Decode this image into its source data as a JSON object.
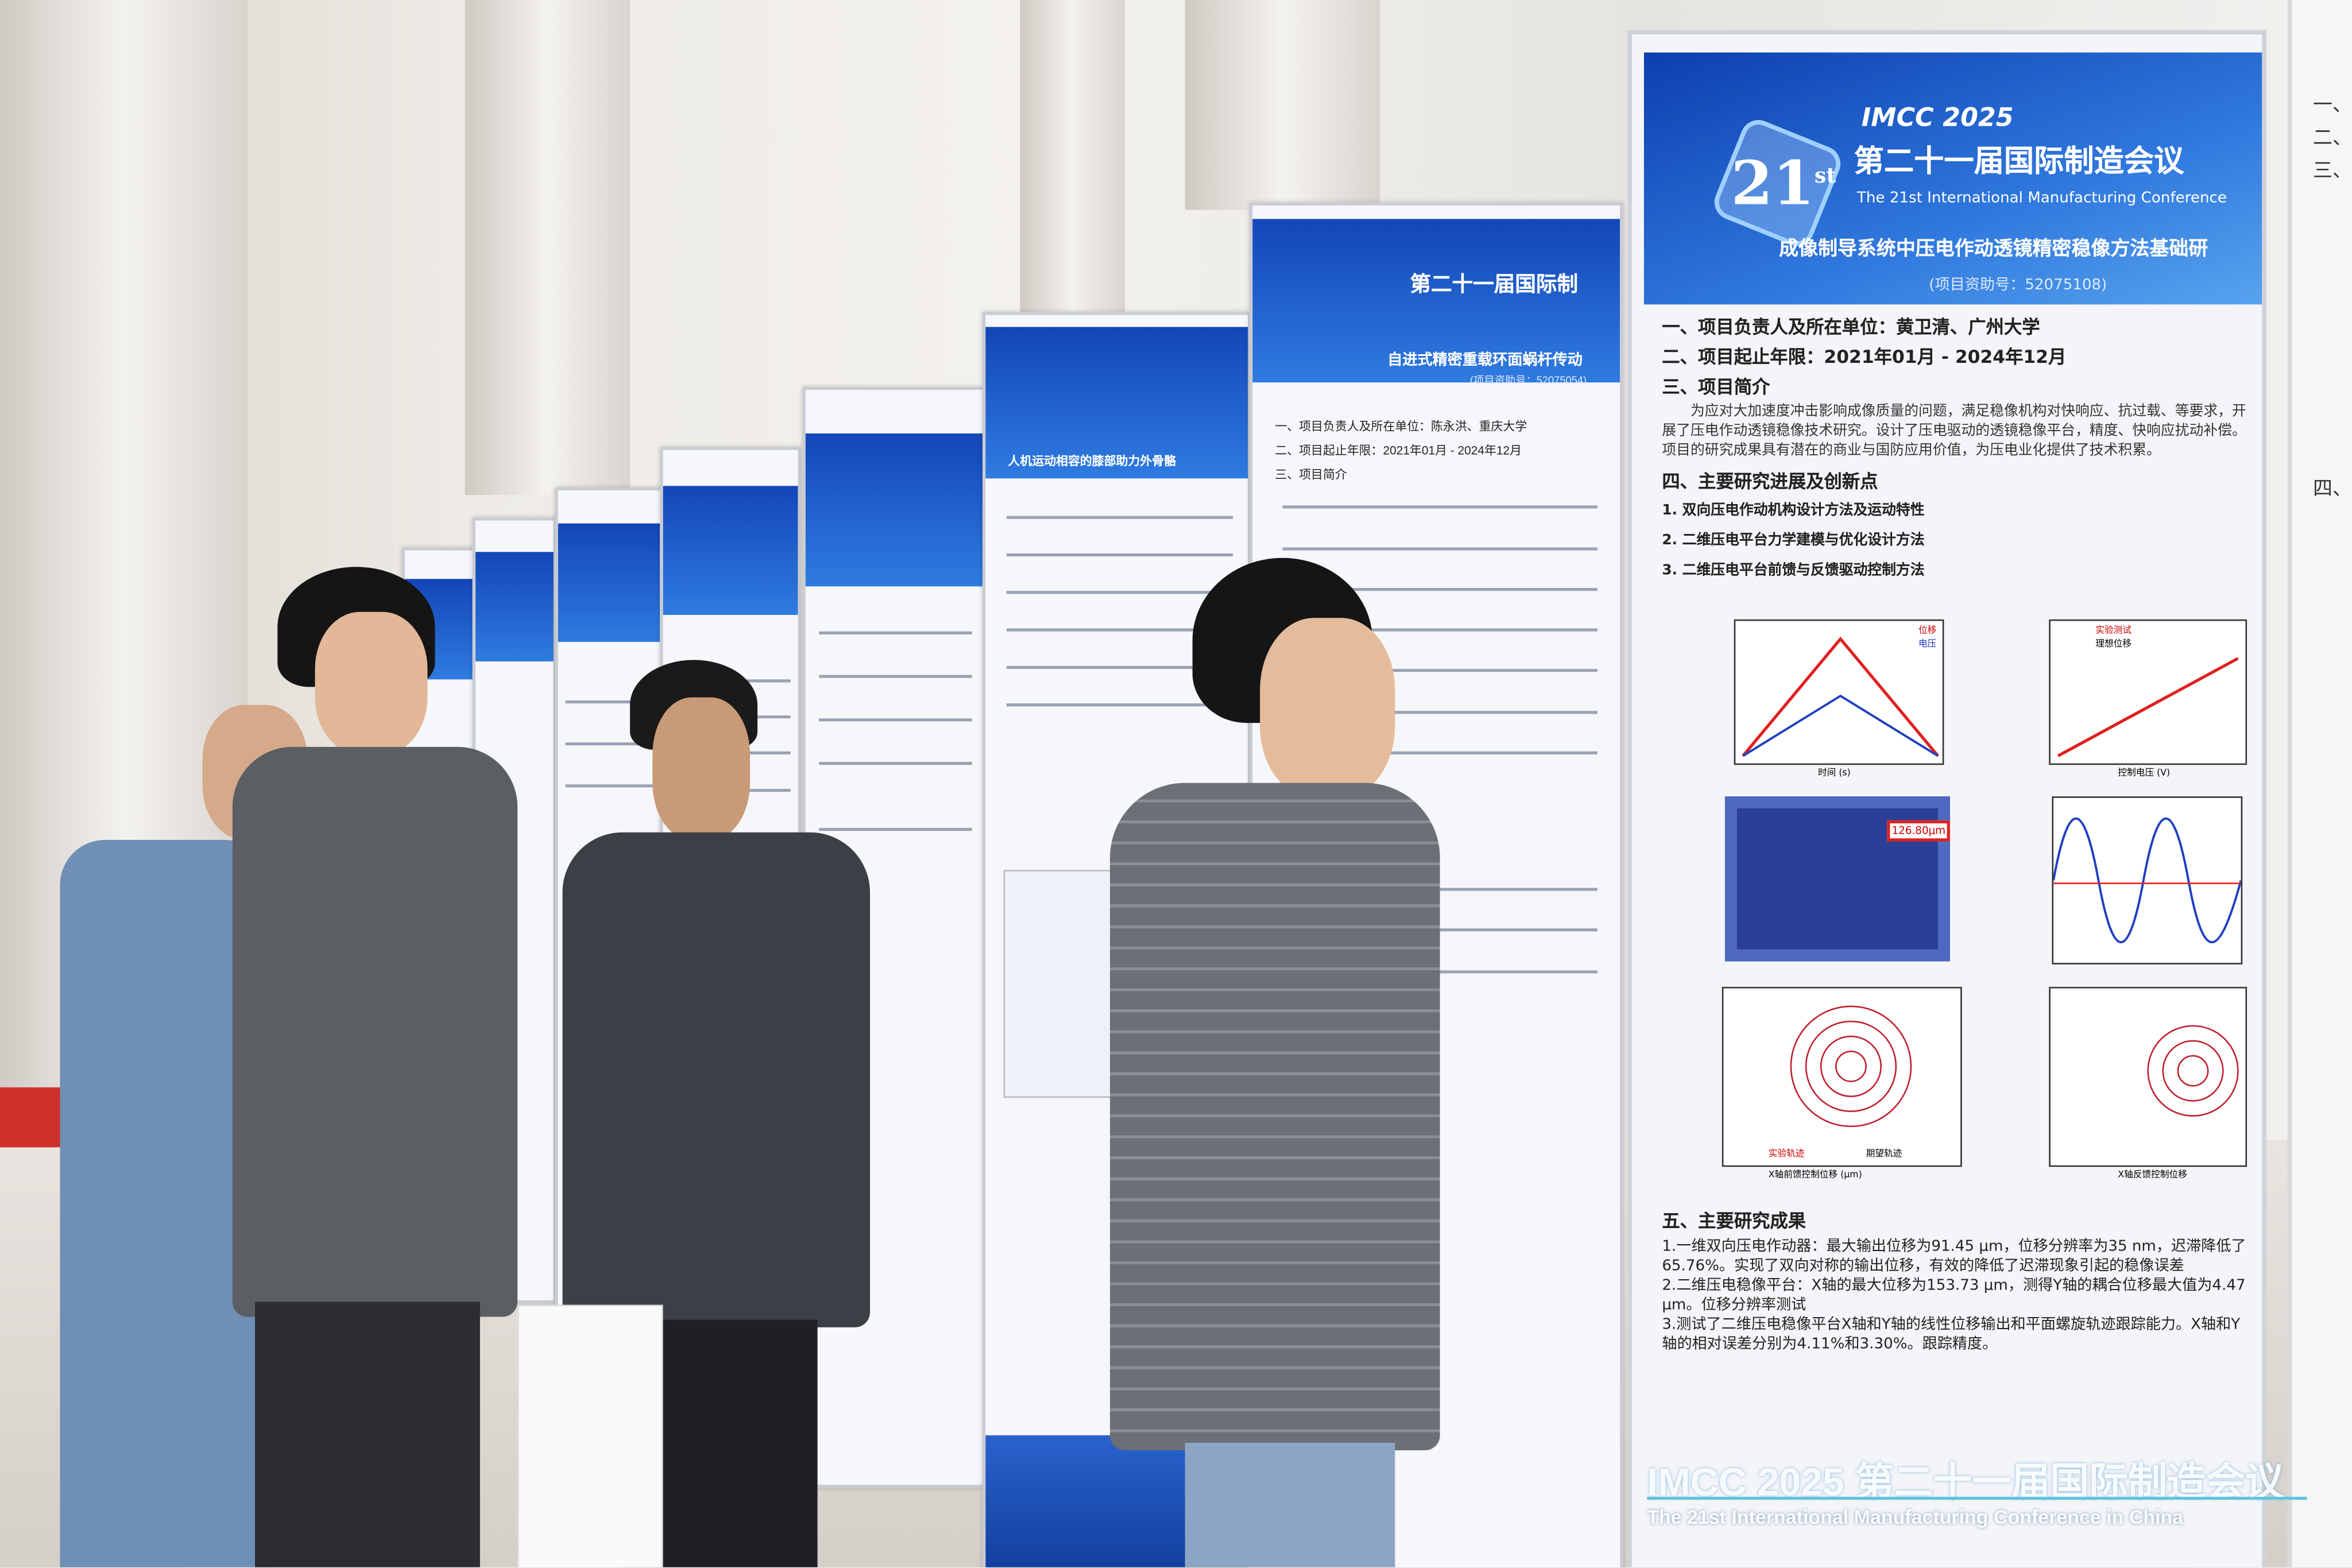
{
  "scene": "conference poster hall",
  "main_poster": {
    "brand": "IMCC 2025",
    "badge": "21",
    "badge_sup": "st",
    "title_cn": "第二十一届国际制造会议",
    "title_en": "The 21st International Manufacturing Conference",
    "project_title": "成像制导系统中压电作动透镜精密稳像方法基础研",
    "grant": "(项目资助号：52075108)",
    "sections": {
      "leader": "一、项目负责人及所在单位：黄卫清、广州大学",
      "period": "二、项目起止年限：2021年01月 - 2024年12月",
      "intro_heading": "三、项目简介",
      "intro_text": "为应对大加速度冲击影响成像质量的问题，满足稳像机构对快响应、抗过载、等要求，开展了压电作动透镜稳像技术研究。设计了压电驱动的透镜稳像平台，精度、快响应扰动补偿。项目的研究成果具有潜在的商业与国防应用价值，为压电业化提供了技术积累。",
      "progress_heading": "四、主要研究进展及创新点",
      "progress_items": [
        "1. 双向压电作动机构设计方法及运动特性",
        "2. 二维压电平台力学建模与优化设计方法",
        "3. 二维压电平台前馈与反馈驱动控制方法"
      ],
      "results_heading": "五、主要研究成果",
      "results_items": [
        "1.一维双向压电作动器：最大输出位移为91.45 μm，位移分辨率为35 nm，迟滞降低了65.76%。实现了双向对称的输出位移，有效的降低了迟滞现象引起的稳像误差",
        "2.二维压电稳像平台：X轴的最大位移为153.73 μm，测得Y轴的耦合位移最大值为4.47 μm。位移分辨率测试",
        "3.测试了二维压电稳像平台X轴和Y轴的线性位移输出和平面螺旋轨迹跟踪能力。X轴和Y轴的相对误差分别为4.11%和3.30%。跟踪精度。"
      ]
    },
    "figure_labels": [
      "位移",
      "电压",
      "时间 (s)",
      "实验测试",
      "理想位移",
      "控制电压 (V)",
      "126.80μm",
      "实验轨迹",
      "期望轨迹",
      "X轴前馈控制位移 (μm)",
      "X轴反馈控制位移"
    ]
  },
  "side_poster": {
    "title_cn": "第二十一届国际制",
    "project_title": "自进式精密重载环面蜗杆传动",
    "grant": "(项目资助号：52075054)",
    "leader": "一、项目负责人及所在单位：陈永洪、重庆大学",
    "period": "二、项目起止年限：2021年01月 - 2024年12月",
    "intro_heading": "三、项目简介"
  },
  "third_poster": {
    "project_title": "人机运动相容的膝部助力外骨骼"
  },
  "edge_poster_lines": [
    "一、",
    "二、",
    "三、",
    "四、"
  ],
  "watermark": {
    "line1": "IMCC 2025 第二十一届国际制造会议",
    "line2": "The 21st International Manufacturing Conference in China"
  },
  "colors": {
    "header_blue": "#1a55c8",
    "carpet_red": "#d0302c",
    "watermark_cyan": "#5fc3e0"
  }
}
